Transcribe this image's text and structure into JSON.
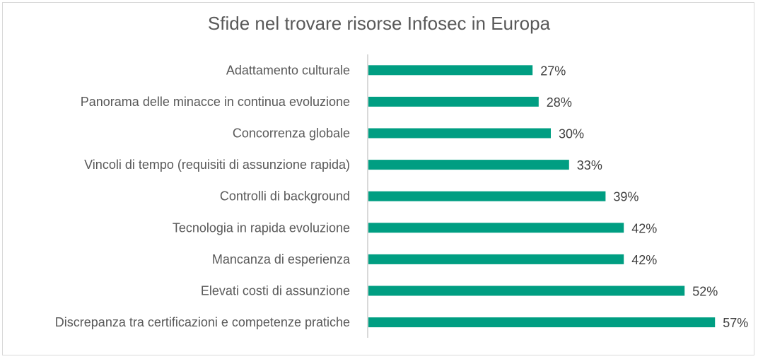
{
  "chart_data": {
    "type": "bar",
    "orientation": "horizontal",
    "title": "Sfide nel trovare risorse Infosec in Europa",
    "xlabel": "",
    "ylabel": "",
    "categories": [
      "Adattamento culturale",
      "Panorama delle minacce in continua evoluzione",
      "Concorrenza globale",
      "Vincoli di tempo (requisiti di assunzione rapida)",
      "Controlli di background",
      "Tecnologia in rapida evoluzione",
      "Mancanza di esperienza",
      "Elevati costi di assunzione",
      "Discrepanza tra certificazioni e competenze pratiche"
    ],
    "values": [
      27,
      28,
      30,
      33,
      39,
      42,
      42,
      52,
      57
    ],
    "labels": [
      "27%",
      "28%",
      "30%",
      "33%",
      "39%",
      "42%",
      "42%",
      "52%",
      "57%"
    ],
    "unit": "%",
    "xlim": [
      0,
      60
    ],
    "grid": false,
    "bar_color": "#009E82"
  }
}
